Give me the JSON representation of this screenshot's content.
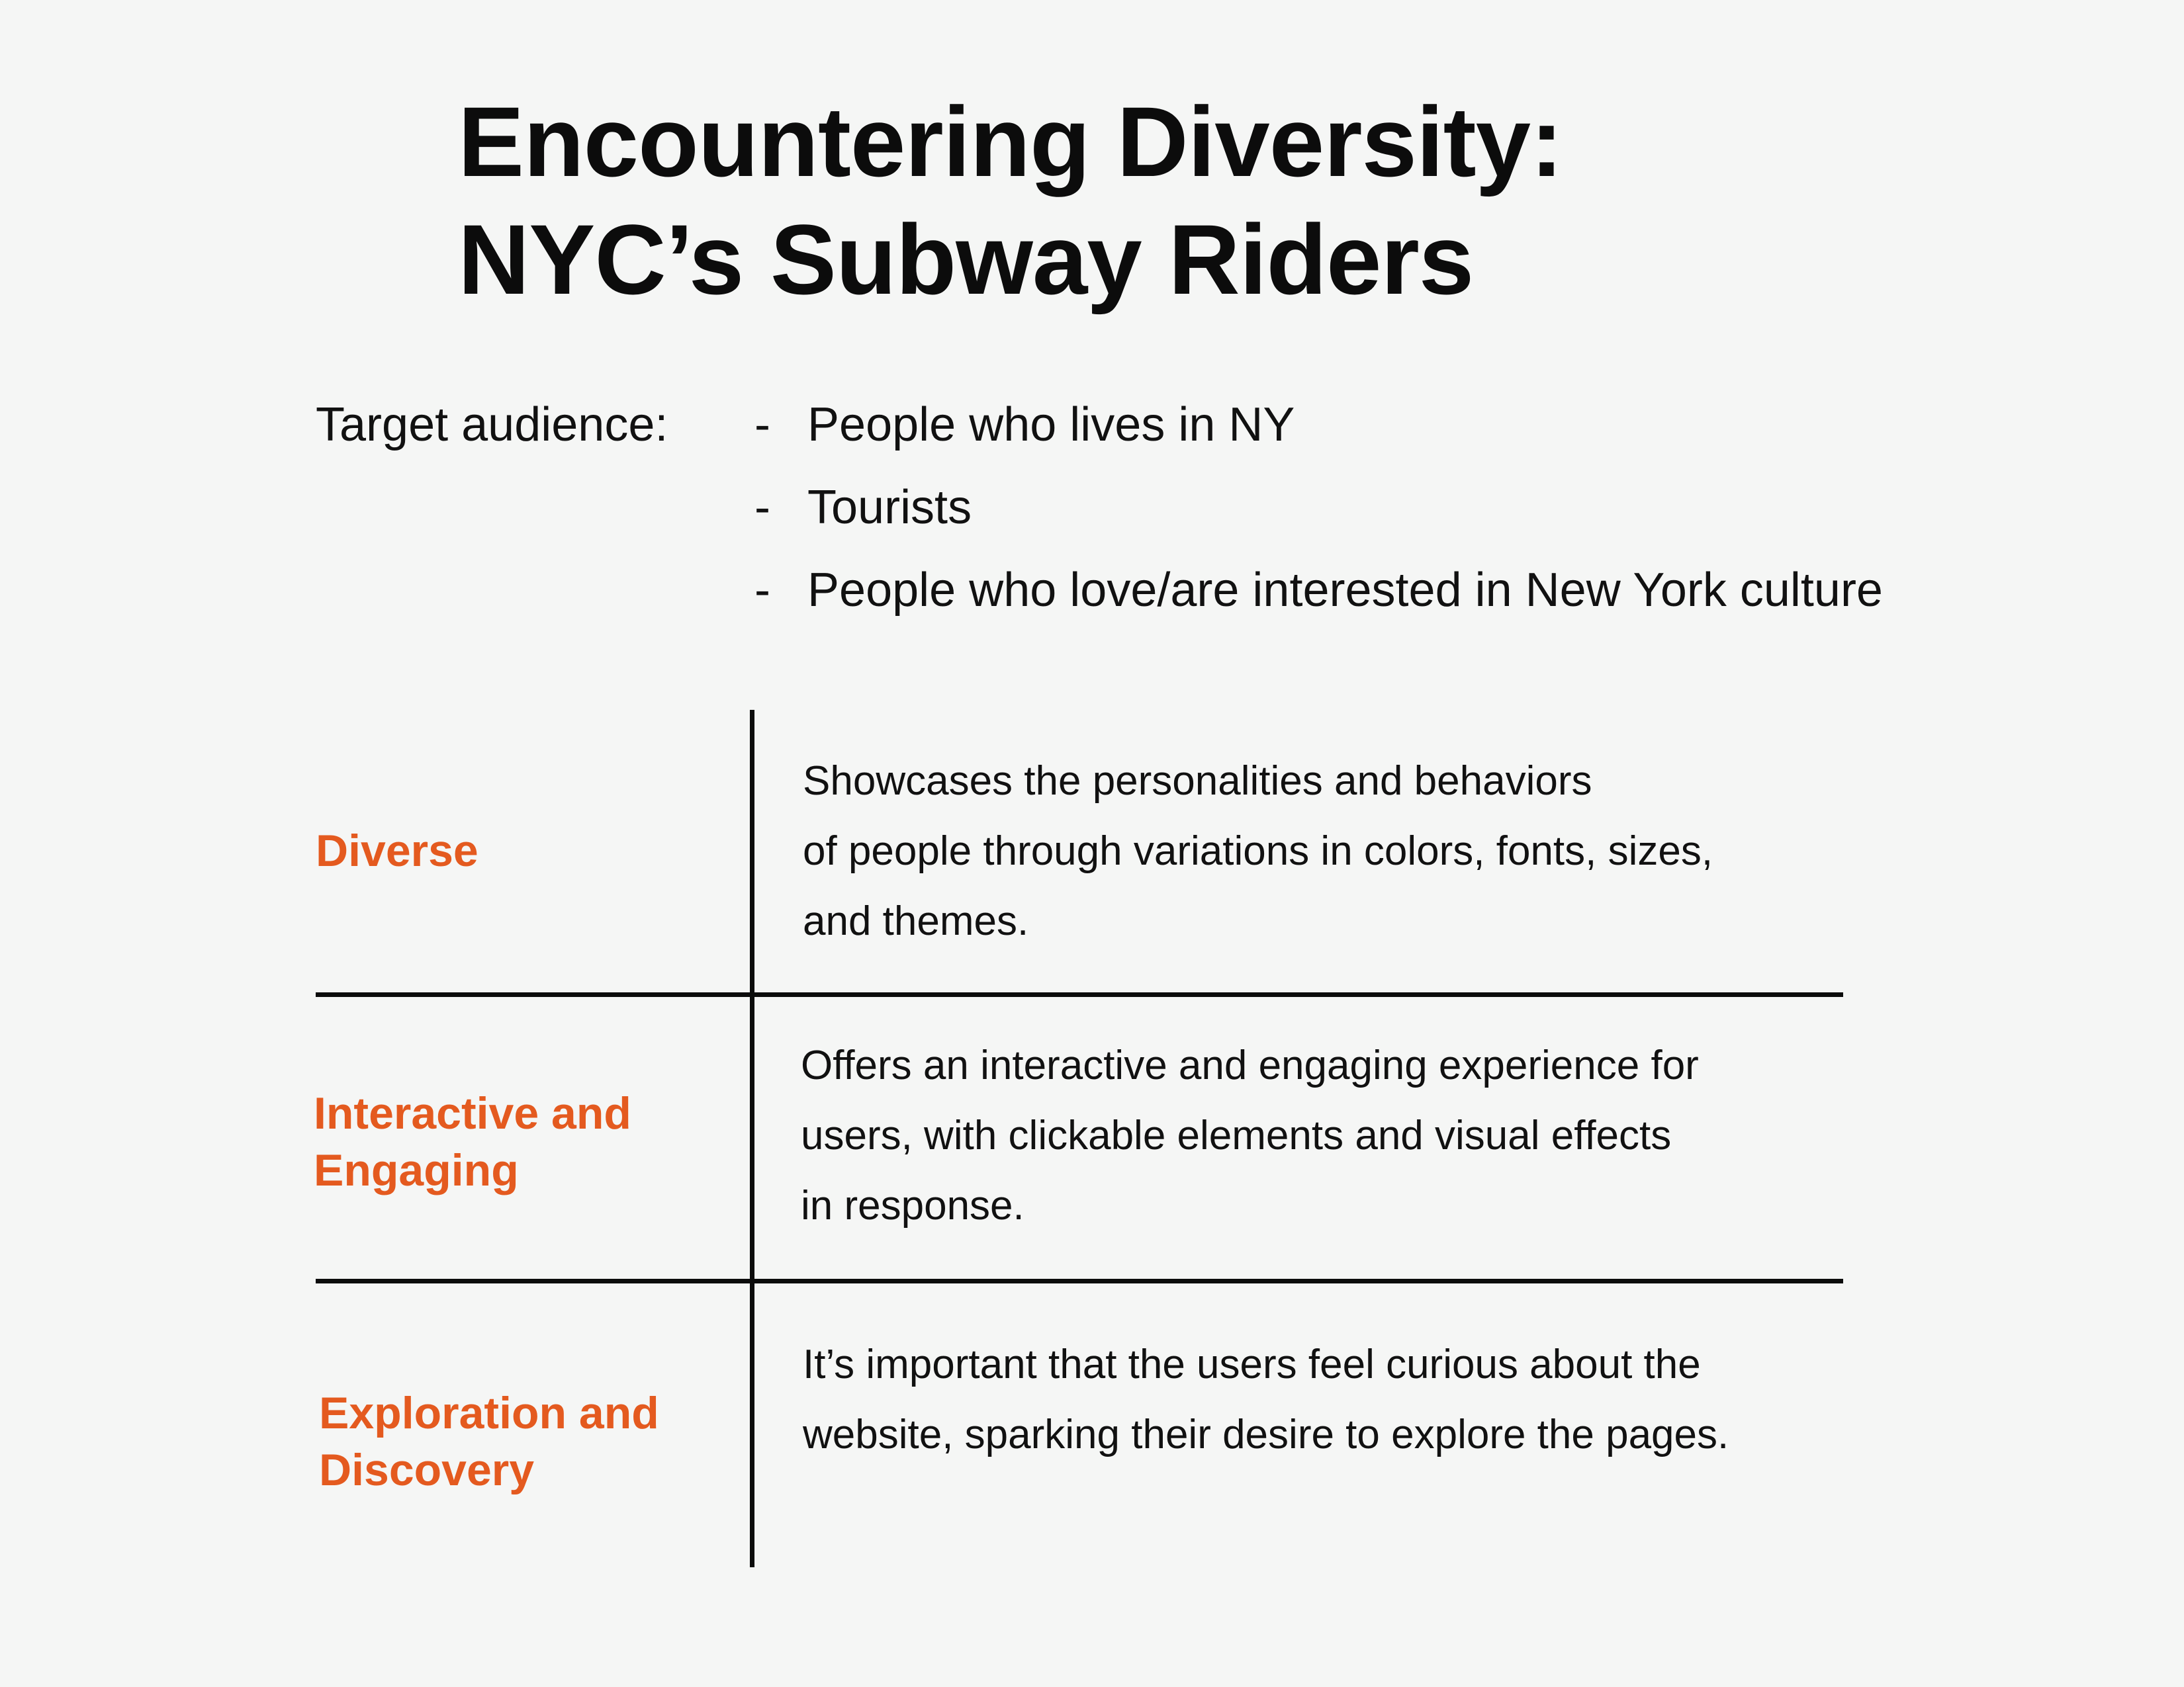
{
  "title": {
    "line1": "Encountering Diversity:",
    "line2": "NYC’s Subway Riders"
  },
  "audience": {
    "label": "Target audience:",
    "bullet": "-",
    "items": [
      "People who lives in NY",
      "Tourists",
      "People who love/are interested in New York culture"
    ]
  },
  "rows": [
    {
      "label_lines": [
        "Diverse"
      ],
      "desc_lines": [
        "Showcases the personalities and behaviors",
        "of people through variations in colors, fonts, sizes,",
        "and themes."
      ]
    },
    {
      "label_lines": [
        "Interactive and",
        "Engaging"
      ],
      "desc_lines": [
        "Offers an interactive and engaging experience for",
        "users, with clickable elements and visual effects",
        "in response."
      ]
    },
    {
      "label_lines": [
        "Exploration and",
        "Discovery"
      ],
      "desc_lines": [
        "It’s important that the users feel curious about the",
        "website, sparking their desire to explore the pages."
      ]
    }
  ],
  "colors": {
    "accent": "#e45a1f",
    "background": "#f5f6f5",
    "text": "#111111"
  }
}
